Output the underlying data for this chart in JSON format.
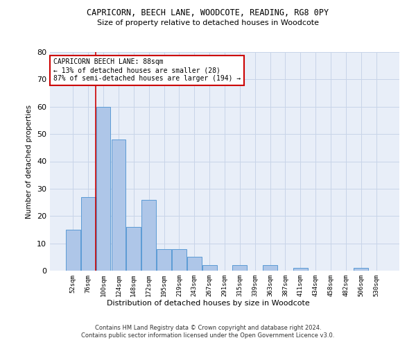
{
  "title1": "CAPRICORN, BEECH LANE, WOODCOTE, READING, RG8 0PY",
  "title2": "Size of property relative to detached houses in Woodcote",
  "xlabel": "Distribution of detached houses by size in Woodcote",
  "ylabel": "Number of detached properties",
  "footer1": "Contains HM Land Registry data © Crown copyright and database right 2024.",
  "footer2": "Contains public sector information licensed under the Open Government Licence v3.0.",
  "annotation_title": "CAPRICORN BEECH LANE: 88sqm",
  "annotation_line1": "← 13% of detached houses are smaller (28)",
  "annotation_line2": "87% of semi-detached houses are larger (194) →",
  "bar_categories": [
    "52sqm",
    "76sqm",
    "100sqm",
    "124sqm",
    "148sqm",
    "172sqm",
    "195sqm",
    "219sqm",
    "243sqm",
    "267sqm",
    "291sqm",
    "315sqm",
    "339sqm",
    "363sqm",
    "387sqm",
    "411sqm",
    "434sqm",
    "458sqm",
    "482sqm",
    "506sqm",
    "530sqm"
  ],
  "bar_values": [
    15,
    27,
    60,
    48,
    16,
    26,
    8,
    8,
    5,
    2,
    0,
    2,
    0,
    2,
    0,
    1,
    0,
    0,
    0,
    1,
    0
  ],
  "bar_color": "#aec6e8",
  "bar_edgecolor": "#5b9bd5",
  "vline_x": 1.5,
  "vline_color": "#cc0000",
  "ylim": [
    0,
    80
  ],
  "yticks": [
    0,
    10,
    20,
    30,
    40,
    50,
    60,
    70,
    80
  ],
  "grid_color": "#c8d4e8",
  "bg_color": "#e8eef8",
  "annotation_box_color": "#ffffff",
  "annotation_box_edgecolor": "#cc0000"
}
